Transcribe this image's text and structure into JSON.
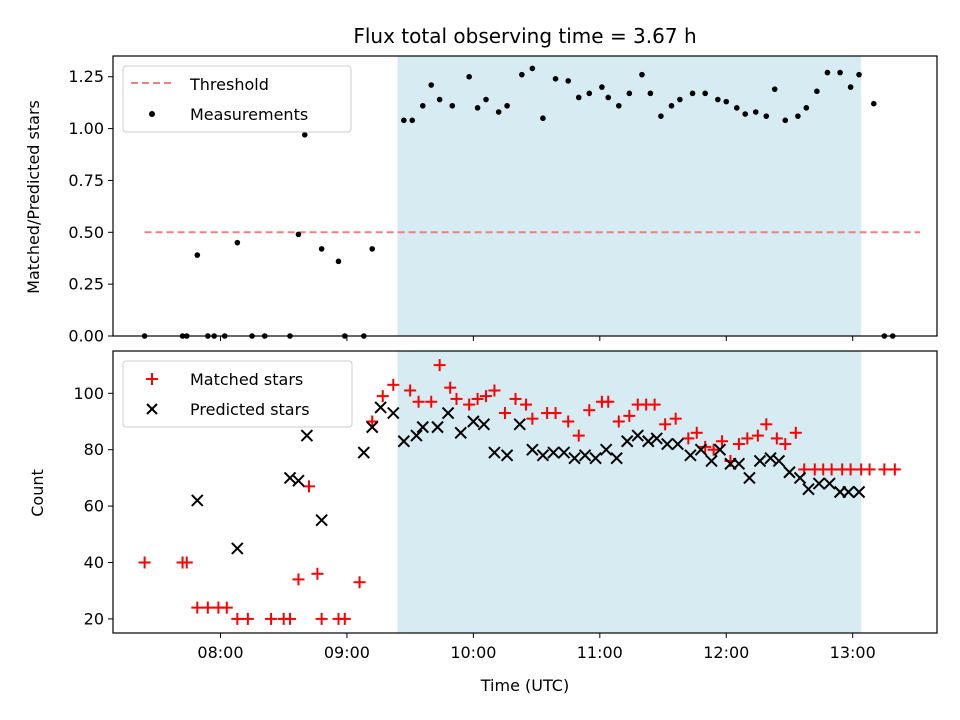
{
  "chart_data": [
    {
      "type": "scatter",
      "title": "Flux total observing time = 3.67 h",
      "xlabel": "",
      "ylabel": "Matched/Predicted stars",
      "xlim": [
        "07:09",
        "13:40"
      ],
      "ylim": [
        0.0,
        1.35
      ],
      "yticks": [
        "0.00",
        "0.25",
        "0.50",
        "0.75",
        "1.00",
        "1.25"
      ],
      "shaded_region": {
        "x_start": "09:24",
        "x_end": "13:04",
        "color": "#add8e6"
      },
      "threshold": {
        "name": "Threshold",
        "y": 0.5,
        "x_start": "07:24",
        "x_end": "13:32",
        "color": "#f08080"
      },
      "series": [
        {
          "name": "Measurements",
          "color": "#000000",
          "x": [
            "07:24",
            "07:42",
            "07:44",
            "07:49",
            "07:54",
            "07:57",
            "08:02",
            "08:08",
            "08:15",
            "08:21",
            "08:33",
            "08:37",
            "08:40",
            "08:48",
            "08:56",
            "08:59",
            "09:08",
            "09:12",
            "09:27",
            "09:31",
            "09:36",
            "09:40",
            "09:44",
            "09:50",
            "09:58",
            "10:02",
            "10:06",
            "10:12",
            "10:16",
            "10:23",
            "10:28",
            "10:33",
            "10:39",
            "10:45",
            "10:50",
            "10:55",
            "11:01",
            "11:04",
            "11:09",
            "11:14",
            "11:20",
            "11:24",
            "11:29",
            "11:34",
            "11:38",
            "11:44",
            "11:50",
            "11:56",
            "12:00",
            "12:05",
            "12:09",
            "12:14",
            "12:19",
            "12:23",
            "12:28",
            "12:34",
            "12:38",
            "12:43",
            "12:48",
            "12:54",
            "12:59",
            "13:03",
            "13:10",
            "13:15",
            "13:19"
          ],
          "y": [
            0.0,
            0.0,
            0.0,
            0.39,
            0.0,
            0.0,
            0.0,
            0.45,
            0.0,
            0.0,
            0.0,
            0.49,
            0.97,
            0.42,
            0.36,
            0.0,
            0.0,
            0.42,
            1.04,
            1.04,
            1.11,
            1.21,
            1.14,
            1.11,
            1.25,
            1.1,
            1.14,
            1.08,
            1.11,
            1.26,
            1.29,
            1.05,
            1.24,
            1.23,
            1.15,
            1.17,
            1.2,
            1.15,
            1.11,
            1.17,
            1.26,
            1.17,
            1.06,
            1.11,
            1.14,
            1.17,
            1.17,
            1.14,
            1.13,
            1.1,
            1.07,
            1.08,
            1.06,
            1.19,
            1.04,
            1.06,
            1.1,
            1.18,
            1.27,
            1.27,
            1.2,
            1.26,
            1.12,
            0.0,
            0.0
          ]
        }
      ]
    },
    {
      "type": "scatter",
      "title": "",
      "xlabel": "Time (UTC)",
      "ylabel": "Count",
      "xlim": [
        "07:09",
        "13:40"
      ],
      "ylim": [
        15,
        115
      ],
      "xticks": [
        "08:00",
        "09:00",
        "10:00",
        "11:00",
        "12:00",
        "13:00"
      ],
      "yticks": [
        "20",
        "40",
        "60",
        "80",
        "100"
      ],
      "shaded_region": {
        "x_start": "09:24",
        "x_end": "13:04",
        "color": "#add8e6"
      },
      "series": [
        {
          "name": "Matched stars",
          "color": "#ff0000",
          "marker": "plus",
          "x": [
            "07:24",
            "07:42",
            "07:44",
            "07:49",
            "07:54",
            "07:59",
            "08:03",
            "08:08",
            "08:13",
            "08:24",
            "08:30",
            "08:33",
            "08:37",
            "08:42",
            "08:46",
            "08:48",
            "08:56",
            "08:59",
            "09:06",
            "09:12",
            "09:17",
            "09:22",
            "09:30",
            "09:34",
            "09:40",
            "09:44",
            "09:49",
            "09:52",
            "09:58",
            "10:02",
            "10:06",
            "10:10",
            "10:15",
            "10:20",
            "10:25",
            "10:28",
            "10:35",
            "10:39",
            "10:45",
            "10:50",
            "10:55",
            "11:01",
            "11:04",
            "11:09",
            "11:14",
            "11:18",
            "11:22",
            "11:26",
            "11:31",
            "11:36",
            "11:42",
            "11:46",
            "11:50",
            "11:54",
            "11:58",
            "12:02",
            "12:06",
            "12:10",
            "12:15",
            "12:19",
            "12:24",
            "12:28",
            "12:33",
            "12:37",
            "12:42",
            "12:46",
            "12:50",
            "12:55",
            "12:59",
            "13:04",
            "13:08",
            "13:15",
            "13:20"
          ],
          "y": [
            40,
            40,
            40,
            24,
            24,
            24,
            24,
            20,
            20,
            20,
            20,
            20,
            34,
            67,
            36,
            20,
            20,
            20,
            33,
            90,
            99,
            103,
            101,
            97,
            97,
            110,
            102,
            98,
            96,
            98,
            99,
            101,
            93,
            98,
            96,
            91,
            93,
            93,
            90,
            85,
            94,
            97,
            97,
            90,
            92,
            96,
            96,
            96,
            89,
            91,
            84,
            86,
            81,
            80,
            83,
            76,
            82,
            84,
            85,
            89,
            84,
            82,
            86,
            73,
            73,
            73,
            73,
            73,
            73,
            73,
            73,
            73,
            73
          ],
          "note_x_alt": []
        },
        {
          "name": "Predicted stars",
          "color": "#000000",
          "marker": "x",
          "x": [
            "07:49",
            "08:08",
            "08:33",
            "08:37",
            "08:41",
            "08:48",
            "09:08",
            "09:12",
            "09:16",
            "09:22",
            "09:27",
            "09:33",
            "09:36",
            "09:43",
            "09:48",
            "09:54",
            "10:00",
            "10:05",
            "10:10",
            "10:16",
            "10:22",
            "10:28",
            "10:33",
            "10:38",
            "10:43",
            "10:48",
            "10:53",
            "10:58",
            "11:03",
            "11:08",
            "11:13",
            "11:18",
            "11:23",
            "11:27",
            "11:32",
            "11:37",
            "11:43",
            "11:48",
            "11:53",
            "11:57",
            "12:02",
            "12:06",
            "12:11",
            "12:16",
            "12:21",
            "12:25",
            "12:30",
            "12:35",
            "12:39",
            "12:44",
            "12:49",
            "12:54",
            "12:58",
            "13:03"
          ],
          "y": [
            62,
            45,
            70,
            69,
            85,
            55,
            79,
            88,
            95,
            93,
            83,
            85,
            88,
            88,
            93,
            86,
            90,
            89,
            79,
            78,
            89,
            80,
            78,
            79,
            79,
            77,
            78,
            77,
            80,
            77,
            83,
            85,
            83,
            84,
            82,
            82,
            78,
            80,
            76,
            80,
            75,
            75,
            70,
            76,
            77,
            76,
            72,
            70,
            66,
            68,
            68,
            65,
            65,
            65
          ]
        }
      ]
    }
  ]
}
